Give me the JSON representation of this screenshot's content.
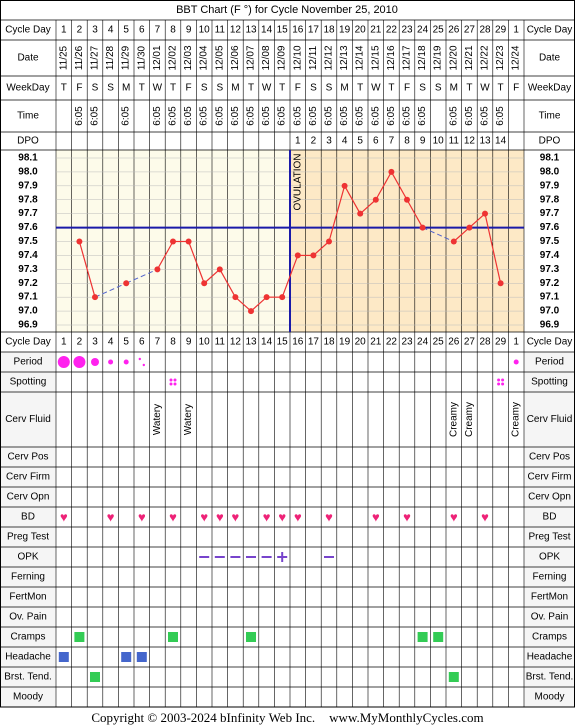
{
  "title": "BBT Chart (F °) for Cycle November 25, 2010",
  "footer": {
    "copyright": "Copyright © 2003-2024 bInfinity Web Inc.",
    "site": "www.MyMonthlyCycles.com"
  },
  "row_labels": {
    "cycle_day": "Cycle Day",
    "date": "Date",
    "weekday": "WeekDay",
    "time": "Time",
    "dpo": "DPO",
    "period": "Period",
    "spotting": "Spotting",
    "cerv_fluid": "Cerv Fluid",
    "cerv_pos": "Cerv Pos",
    "cerv_firm": "Cerv Firm",
    "cerv_opn": "Cerv Opn",
    "bd": "BD",
    "preg_test": "Preg Test",
    "opk": "OPK",
    "ferning": "Ferning",
    "fertmon": "FertMon",
    "ov_pain": "Ov. Pain",
    "cramps": "Cramps",
    "headache": "Headache",
    "brst_tend": "Brst. Tend.",
    "moody": "Moody"
  },
  "ovulation_label": "OVULATION",
  "colors": {
    "line": "#ee3333",
    "coverline": "#1a1aa8",
    "ovulation": "#1a1aa8",
    "luteal_bg": "#fde9c6",
    "follicular_bg": "#fdfbea",
    "period": "#ff22ee",
    "bd": "#ee2277",
    "green": "#33cc55",
    "blue": "#4466cc",
    "opk": "#7744cc",
    "label_bg": "#ffe6f8"
  },
  "chart_data": {
    "type": "line",
    "title": "BBT Chart (F °) for Cycle November 25, 2010",
    "cycle_days": [
      "1",
      "2",
      "3",
      "4",
      "5",
      "6",
      "7",
      "8",
      "9",
      "10",
      "11",
      "12",
      "13",
      "14",
      "15",
      "16",
      "17",
      "18",
      "19",
      "20",
      "21",
      "22",
      "23",
      "24",
      "25",
      "26",
      "27",
      "28",
      "29",
      "1"
    ],
    "dates": [
      "11/25",
      "11/26",
      "11/27",
      "11/28",
      "11/29",
      "11/30",
      "12/01",
      "12/02",
      "12/03",
      "12/04",
      "12/05",
      "12/06",
      "12/07",
      "12/08",
      "12/09",
      "12/10",
      "12/11",
      "12/12",
      "12/13",
      "12/14",
      "12/15",
      "12/16",
      "12/17",
      "12/18",
      "12/19",
      "12/20",
      "12/21",
      "12/22",
      "12/23",
      "12/24"
    ],
    "weekdays": [
      "T",
      "F",
      "S",
      "S",
      "M",
      "T",
      "W",
      "T",
      "F",
      "S",
      "S",
      "M",
      "T",
      "W",
      "T",
      "F",
      "S",
      "S",
      "M",
      "T",
      "W",
      "T",
      "F",
      "S",
      "S",
      "M",
      "T",
      "W",
      "T",
      "F"
    ],
    "times": [
      "",
      "6:05",
      "6:05",
      "",
      "6:05",
      "",
      "6:05",
      "6:05",
      "6:05",
      "6:05",
      "6:05",
      "6:05",
      "6:05",
      "6:05",
      "6:05",
      "6:05",
      "6:05",
      "6:05",
      "6:05",
      "6:05",
      "6:05",
      "6:05",
      "6:05",
      "6:05",
      "",
      "6:05",
      "6:05",
      "6:05",
      "6:05",
      ""
    ],
    "dpo": [
      "",
      "",
      "",
      "",
      "",
      "",
      "",
      "",
      "",
      "",
      "",
      "",
      "",
      "",
      "",
      "1",
      "2",
      "3",
      "4",
      "5",
      "6",
      "7",
      "8",
      "9",
      "10",
      "11",
      "12",
      "13",
      "14",
      ""
    ],
    "temps": [
      null,
      97.5,
      97.1,
      null,
      97.2,
      null,
      97.3,
      97.5,
      97.5,
      97.2,
      97.3,
      97.1,
      97.0,
      97.1,
      97.1,
      97.4,
      97.4,
      97.5,
      97.9,
      97.7,
      97.8,
      98.0,
      97.8,
      97.6,
      null,
      97.5,
      97.6,
      97.7,
      97.2,
      null
    ],
    "y_ticks": [
      "98.1",
      "98.0",
      "97.9",
      "97.8",
      "97.7",
      "97.6",
      "97.5",
      "97.4",
      "97.3",
      "97.2",
      "97.1",
      "97.0",
      "96.9"
    ],
    "ylim": [
      96.9,
      98.1
    ],
    "coverline": 97.6,
    "ovulation_after_day_index": 14
  },
  "observations": {
    "period": [
      [
        "heavy",
        "heavy",
        "medium",
        "light",
        "light",
        "spot",
        "",
        "",
        "",
        "",
        "",
        "",
        "",
        "",
        "",
        "",
        "",
        "",
        "",
        "",
        "",
        "",
        "",
        "",
        "",
        "",
        "",
        "",
        "",
        "light"
      ]
    ],
    "spotting_days": [
      7,
      28
    ],
    "cerv_fluid": [
      "",
      "",
      "",
      "",
      "",
      "",
      "Watery",
      "",
      "Watery",
      "",
      "",
      "",
      "",
      "",
      "",
      "",
      "",
      "",
      "",
      "",
      "",
      "",
      "",
      "",
      "",
      "Creamy",
      "Creamy",
      "",
      "",
      "Creamy"
    ],
    "bd_days": [
      0,
      3,
      5,
      7,
      9,
      10,
      11,
      13,
      14,
      15,
      17,
      20,
      22,
      25,
      27
    ],
    "opk": [
      "",
      "",
      "",
      "",
      "",
      "",
      "",
      "",
      "",
      "-",
      "-",
      "-",
      "-",
      "-",
      "+",
      "",
      "",
      "-",
      "",
      "",
      "",
      "",
      "",
      "",
      "",
      "",
      "",
      "",
      "",
      ""
    ],
    "cramps_days": [
      1,
      7,
      12,
      23,
      24
    ],
    "headache_days": [
      0,
      4,
      5
    ],
    "brst_tend_days": [
      2,
      25
    ]
  }
}
